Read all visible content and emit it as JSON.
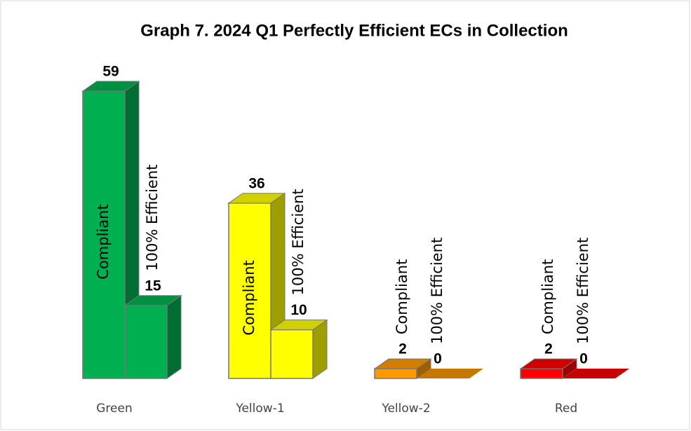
{
  "chart_data": {
    "type": "bar3d",
    "title": "Graph 7. 2024 Q1 Perfectly Efficient ECs in Collection",
    "categories": [
      "Green",
      "Yellow-1",
      "Yellow-2",
      "Red"
    ],
    "category_colors": [
      "#00b050",
      "#ffff00",
      "#ff9900",
      "#ff0000"
    ],
    "series": [
      {
        "name": "Compliant",
        "values": [
          59,
          36,
          2,
          2
        ]
      },
      {
        "name": "100% Efficient",
        "values": [
          15,
          10,
          0,
          0
        ]
      }
    ]
  }
}
